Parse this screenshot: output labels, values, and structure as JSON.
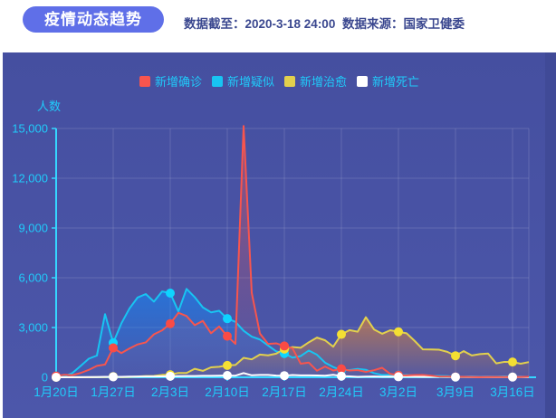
{
  "header": {
    "title": "疫情动态趋势",
    "data_cutoff": "数据截至：2020-3-18 24:00",
    "data_source": "数据来源：国家卫健委"
  },
  "colors": {
    "page_bg": "#FFFFFF",
    "panel_bg_top": "#454FA0",
    "panel_bg_bottom": "#4C57AA",
    "panel_right_shade": "#404A97",
    "title_pill": "#5F6FE8",
    "header_text": "#3A478F",
    "axis_text": "#20CBFA",
    "axis_line": "#35D6FF",
    "gridline": "rgba(255,255,255,0.14)"
  },
  "chart_data": {
    "type": "line",
    "title": "疫情动态趋势",
    "xlabel": "",
    "ylabel": "人数",
    "ylim": [
      0,
      15000
    ],
    "grid": true,
    "legend_position": "top",
    "y_tick_labels": [
      "0",
      "3,000",
      "6,000",
      "9,000",
      "12,000",
      "15,000"
    ],
    "x_tick_labels": [
      "1月20日",
      "1月27日",
      "2月3日",
      "2月10日",
      "2月17日",
      "2月24日",
      "3月2日",
      "3月9日",
      "3月16日"
    ],
    "x_tick_day_indices": [
      0,
      7,
      14,
      21,
      28,
      35,
      42,
      49,
      56
    ],
    "marker_day_indices": [
      0,
      7,
      14,
      21,
      28,
      35,
      42,
      49,
      56
    ],
    "dates": [
      "1月20日",
      "1月21日",
      "1月22日",
      "1月23日",
      "1月24日",
      "1月25日",
      "1月26日",
      "1月27日",
      "1月28日",
      "1月29日",
      "1月30日",
      "1月31日",
      "2月1日",
      "2月2日",
      "2月3日",
      "2月4日",
      "2月5日",
      "2月6日",
      "2月7日",
      "2月8日",
      "2月9日",
      "2月10日",
      "2月11日",
      "2月12日",
      "2月13日",
      "2月14日",
      "2月15日",
      "2月16日",
      "2月17日",
      "2月18日",
      "2月19日",
      "2月20日",
      "2月21日",
      "2月22日",
      "2月23日",
      "2月24日",
      "2月25日",
      "2月26日",
      "2月27日",
      "2月28日",
      "2月29日",
      "3月1日",
      "3月2日",
      "3月3日",
      "3月4日",
      "3月5日",
      "3月6日",
      "3月7日",
      "3月8日",
      "3月9日",
      "3月10日",
      "3月11日",
      "3月12日",
      "3月13日",
      "3月14日",
      "3月15日",
      "3月16日",
      "3月17日",
      "3月18日"
    ],
    "series": [
      {
        "key": "new-confirmed",
        "name": "新增确诊",
        "color": "#F7554E",
        "marker_color": "#FA4B45",
        "fill_top": "rgba(247,85,78,0.42)",
        "fill_bottom": "rgba(247,85,78,0.03)",
        "values": [
          77,
          149,
          131,
          259,
          444,
          688,
          769,
          1771,
          1459,
          1737,
          1982,
          2102,
          2590,
          2829,
          3235,
          3887,
          3694,
          3143,
          3399,
          2656,
          3062,
          2478,
          2015,
          15152,
          5090,
          2641,
          2009,
          2048,
          1886,
          1749,
          820,
          889,
          397,
          648,
          409,
          508,
          406,
          433,
          327,
          427,
          573,
          202,
          125,
          119,
          139,
          143,
          99,
          44,
          40,
          19,
          24,
          15,
          8,
          11,
          20,
          16,
          21,
          13,
          34
        ]
      },
      {
        "key": "new-suspected",
        "name": "新增疑似",
        "color": "#18C4F2",
        "marker_color": "#0ED4FF",
        "fill_top": "rgba(14,140,255,0.55)",
        "fill_bottom": "rgba(14,140,255,0.06)",
        "values": [
          27,
          53,
          257,
          680,
          1118,
          1309,
          3806,
          2077,
          3248,
          4148,
          4812,
          5019,
          4562,
          5173,
          5072,
          3971,
          5328,
          4833,
          4214,
          3916,
          4008,
          3536,
          3342,
          2807,
          2450,
          2277,
          1918,
          1563,
          1432,
          1185,
          1277,
          1614,
          1361,
          882,
          620,
          430,
          439,
          508,
          452,
          248,
          141,
          141,
          129,
          143,
          102,
          140,
          88,
          84,
          72,
          17,
          31,
          33,
          14,
          26,
          36,
          41,
          29,
          23,
          23
        ]
      },
      {
        "key": "new-cured",
        "name": "新增治愈",
        "color": "#E2D04D",
        "marker_color": "#F4DF33",
        "fill_top": "rgba(236,138,48,0.62)",
        "fill_bottom": "rgba(236,138,48,0.05)",
        "values": [
          0,
          0,
          0,
          6,
          3,
          11,
          9,
          43,
          9,
          21,
          47,
          72,
          85,
          147,
          157,
          262,
          261,
          510,
          387,
          600,
          632,
          716,
          744,
          1171,
          1081,
          1373,
          1323,
          1425,
          1701,
          1824,
          1779,
          2109,
          2393,
          2230,
          1846,
          2589,
          2842,
          2750,
          3622,
          2885,
          2623,
          2837,
          2742,
          2652,
          2189,
          1681,
          1678,
          1661,
          1535,
          1297,
          1578,
          1318,
          1399,
          1430,
          838,
          930,
          921,
          819,
          917
        ]
      },
      {
        "key": "new-deaths",
        "name": "新增死亡",
        "color": "#FFFFFF",
        "marker_color": "#FFFFFF",
        "fill_top": "rgba(255,255,255,0.20)",
        "fill_bottom": "rgba(255,255,255,0)",
        "values": [
          2,
          3,
          8,
          8,
          16,
          15,
          24,
          26,
          26,
          38,
          43,
          46,
          45,
          57,
          64,
          65,
          73,
          73,
          86,
          89,
          97,
          108,
          97,
          254,
          121,
          143,
          142,
          105,
          98,
          136,
          114,
          118,
          109,
          97,
          150,
          71,
          52,
          29,
          44,
          47,
          35,
          42,
          31,
          38,
          31,
          30,
          28,
          27,
          22,
          17,
          22,
          11,
          7,
          13,
          10,
          14,
          13,
          11,
          8
        ]
      }
    ]
  }
}
